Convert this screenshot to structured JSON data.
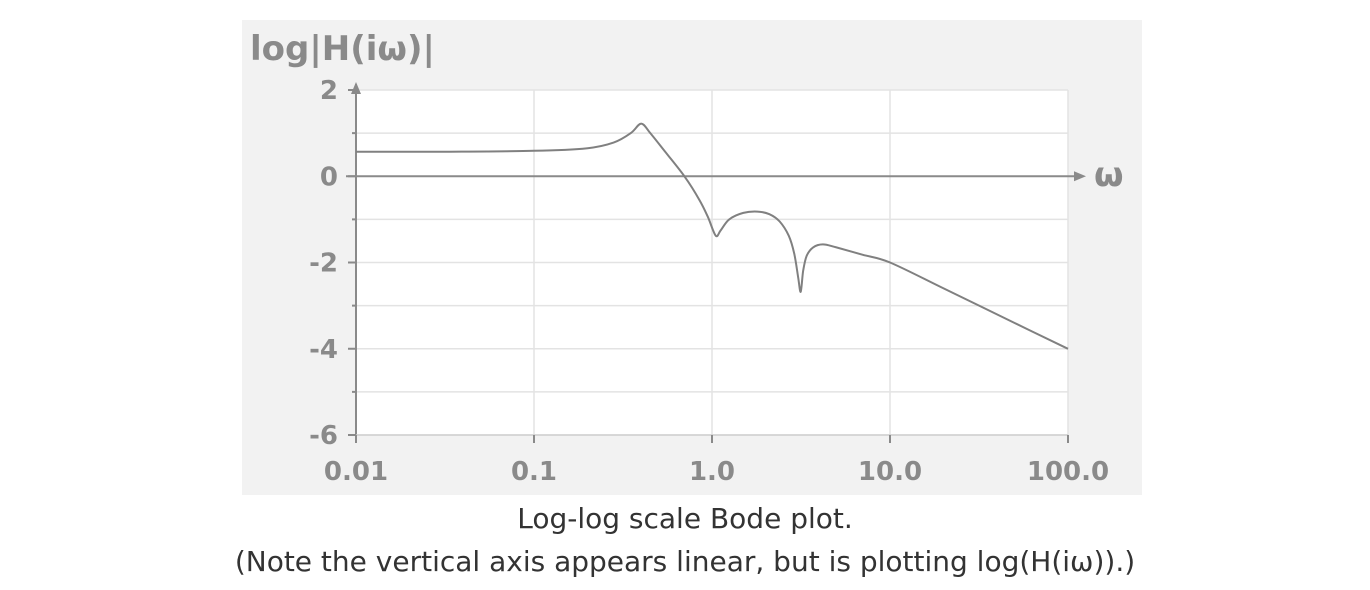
{
  "chart_data": {
    "type": "line",
    "ylabel": "log|H(iω)|",
    "xlabel": "ω",
    "x_scale": "log",
    "xticks": [
      0.01,
      0.1,
      1.0,
      10.0,
      100.0
    ],
    "xtick_labels": [
      "0.01",
      "0.1",
      "1.0",
      "10.0",
      "100.0"
    ],
    "yticks": [
      2,
      0,
      -2,
      -4,
      -6
    ],
    "ytick_labels": [
      "2",
      "0",
      "-2",
      "-4",
      "-6"
    ],
    "ylim": [
      -6,
      2
    ],
    "xlim": [
      0.01,
      100.0
    ],
    "grid": true,
    "series": [
      {
        "x": [
          0.01,
          0.03,
          0.1,
          0.2,
          0.28,
          0.35,
          0.4,
          0.45,
          0.55,
          0.7,
          0.85,
          0.95,
          1.05,
          1.12,
          1.25,
          1.5,
          1.8,
          2.1,
          2.4,
          2.7,
          2.9,
          3.05,
          3.15,
          3.25,
          3.4,
          3.7,
          4.2,
          5.0,
          7.0,
          10.0,
          20.0,
          50.0,
          100.0
        ],
        "y": [
          0.57,
          0.57,
          0.59,
          0.65,
          0.78,
          1.0,
          1.22,
          1.0,
          0.55,
          0.0,
          -0.55,
          -0.95,
          -1.38,
          -1.25,
          -1.0,
          -0.85,
          -0.82,
          -0.88,
          -1.05,
          -1.38,
          -1.8,
          -2.35,
          -2.68,
          -2.2,
          -1.85,
          -1.65,
          -1.58,
          -1.65,
          -1.82,
          -2.0,
          -2.6,
          -3.4,
          -4.0
        ],
        "color": "#808080"
      }
    ]
  },
  "caption": {
    "line1": "Log-log scale Bode plot.",
    "line2": "(Note the vertical axis appears linear, but is plotting log(H(iω)).)"
  }
}
